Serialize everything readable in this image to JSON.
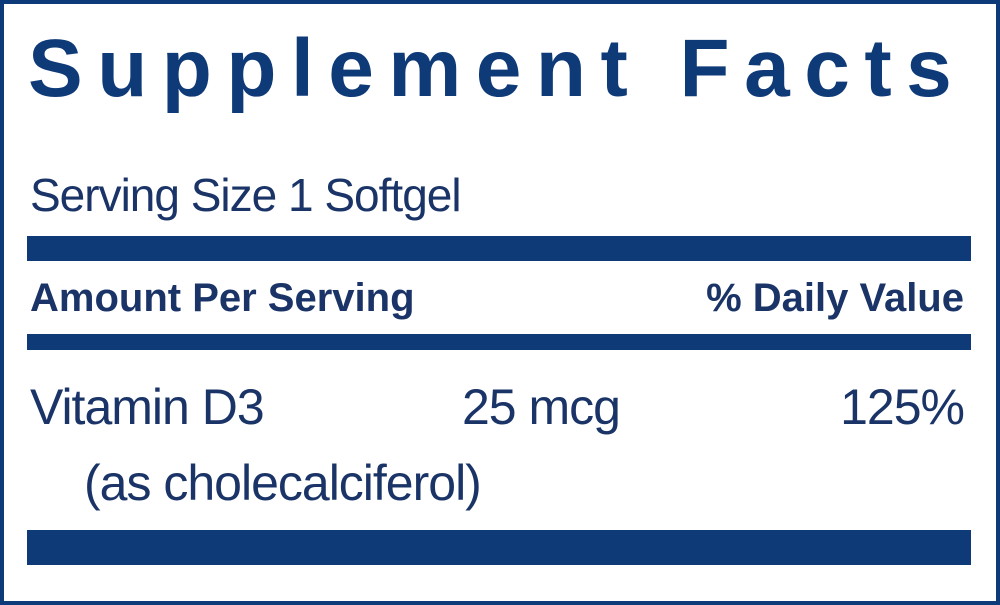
{
  "label": {
    "title": "Supplement Facts",
    "serving_size": "Serving Size 1 Softgel",
    "header": {
      "amount": "Amount Per Serving",
      "daily_value": "% Daily Value"
    },
    "nutrients": [
      {
        "name": "Vitamin D3",
        "source": "(as cholecalciferol)",
        "amount": "25 mcg",
        "daily_value": "125%"
      }
    ],
    "colors": {
      "primary": "#0f3a78",
      "text": "#1b3468"
    }
  }
}
